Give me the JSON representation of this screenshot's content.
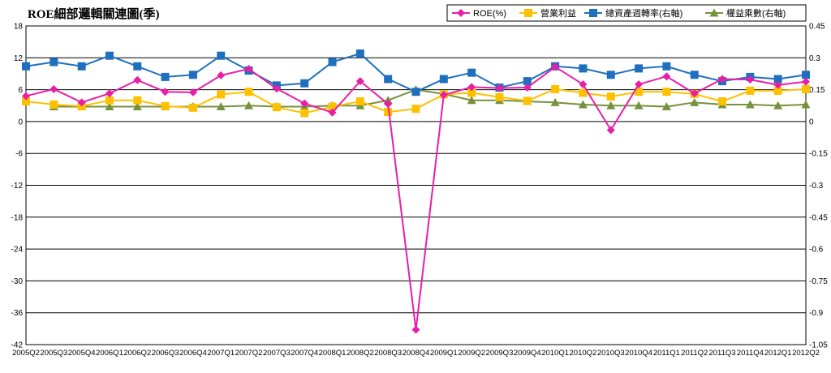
{
  "chart_data": {
    "type": "line",
    "title": "ROE細部邏輯關連圖(季)",
    "categories": [
      "2005Q2",
      "2005Q3",
      "2005Q4",
      "2006Q1",
      "2006Q2",
      "2006Q3",
      "2006Q4",
      "2007Q1",
      "2007Q2",
      "2007Q3",
      "2007Q4",
      "2008Q1",
      "2008Q2",
      "2008Q3",
      "2008Q4",
      "2009Q1",
      "2009Q2",
      "2009Q3",
      "2009Q4",
      "2010Q1",
      "2010Q2",
      "2010Q3",
      "2010Q4",
      "2011Q1",
      "2011Q2",
      "2011Q3",
      "2011Q4",
      "2012Q1",
      "2012Q2"
    ],
    "y_left": {
      "ticks": [
        "18",
        "12",
        "6",
        "0",
        "-6",
        "-12",
        "-18",
        "-24",
        "-30",
        "-36",
        "-42"
      ],
      "range": [
        -42,
        18
      ]
    },
    "y_right": {
      "ticks": [
        "0.45",
        "0.3",
        "0.15",
        "0",
        "-0.15",
        "-0.3",
        "-0.45",
        "-0.6",
        "-0.75",
        "-0.9",
        "-1.05"
      ],
      "range": [
        -1.05,
        0.45
      ]
    },
    "grid": true,
    "legend_placement": "top-right",
    "series": [
      {
        "name": "ROE(%)",
        "axis": "left",
        "color": "#e81ea8",
        "marker": "diamond",
        "values": [
          4.8,
          6.1,
          3.6,
          5.3,
          7.8,
          5.6,
          5.5,
          8.7,
          9.9,
          6.2,
          3.4,
          1.7,
          7.6,
          3.3,
          -39.2,
          5.0,
          6.5,
          6.3,
          6.4,
          10.3,
          7.0,
          -1.6,
          7.0,
          8.5,
          5.3,
          8.0,
          7.9,
          6.9,
          7.5
        ]
      },
      {
        "name": "營業利益",
        "axis": "left",
        "color": "#ffc000",
        "marker": "square",
        "values": [
          3.8,
          3.2,
          2.9,
          4.0,
          4.0,
          2.9,
          2.6,
          5.1,
          5.6,
          2.7,
          1.6,
          2.8,
          3.8,
          1.8,
          2.4,
          5.1,
          5.4,
          4.6,
          3.9,
          6.1,
          5.4,
          4.7,
          5.6,
          5.6,
          5.2,
          3.8,
          5.8,
          5.8,
          6.1
        ]
      },
      {
        "name": "總資產週轉率(右軸)",
        "axis": "right",
        "color": "#1f6fbf",
        "marker": "square",
        "values": [
          0.26,
          0.28,
          0.26,
          0.31,
          0.26,
          0.21,
          0.22,
          0.31,
          0.24,
          0.17,
          0.18,
          0.28,
          0.32,
          0.2,
          0.14,
          0.2,
          0.23,
          0.16,
          0.19,
          0.26,
          0.25,
          0.22,
          0.25,
          0.26,
          0.22,
          0.19,
          0.21,
          0.2,
          0.22
        ]
      },
      {
        "name": "權益乘數(右軸)",
        "axis": "right",
        "color": "#76923c",
        "marker": "triangle",
        "values": [
          null,
          0.07,
          0.07,
          0.07,
          0.07,
          0.07,
          0.07,
          0.07,
          0.075,
          0.07,
          0.07,
          0.075,
          0.075,
          0.1,
          0.15,
          0.13,
          0.1,
          0.1,
          0.095,
          0.09,
          0.08,
          0.075,
          0.075,
          0.07,
          0.09,
          0.08,
          0.08,
          0.075,
          0.08
        ]
      }
    ]
  }
}
